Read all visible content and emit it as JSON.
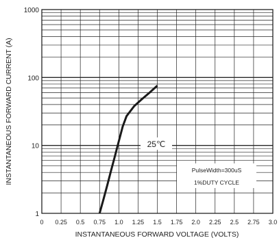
{
  "chart_data": {
    "type": "line",
    "title": "",
    "xlabel": "INSTANTANEOUS FORWARD VOLTAGE (VOLTS)",
    "ylabel": "INSTANTANEOUS FORWARD CURRENT (A)",
    "xlim": [
      0,
      3.0
    ],
    "ylim": [
      1,
      1000
    ],
    "y_scale": "log",
    "grid": true,
    "x_ticks": [
      "0",
      "0.25",
      "0.5",
      "0.75",
      "1.0",
      "1.25",
      "1.5",
      "1.75",
      "2.0",
      "2.25",
      "2.5",
      "2.75",
      "3.0"
    ],
    "y_ticks": [
      "1",
      "10",
      "100",
      "1000"
    ],
    "series": [
      {
        "x": [
          0.75,
          0.8,
          0.85,
          0.9,
          0.95,
          1.0,
          1.05,
          1.1,
          1.2,
          1.3,
          1.4,
          1.5
        ],
        "y": [
          1.0,
          1.6,
          2.6,
          4.3,
          7.0,
          11.5,
          19.0,
          27.0,
          38.0,
          48.0,
          60.0,
          76.0
        ],
        "color": "#1a1a1a"
      }
    ],
    "annotations": [
      {
        "text": "25℃"
      },
      {
        "text": "PulseWidth=300uS"
      },
      {
        "text": "1%DUTY CYCLE"
      }
    ]
  }
}
